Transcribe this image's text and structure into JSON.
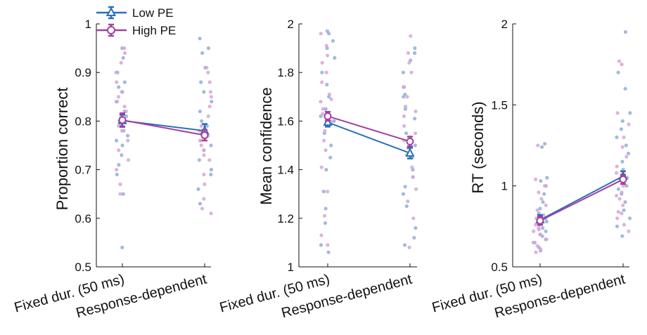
{
  "colors": {
    "low_pe": "#2a6fbb",
    "high_pe": "#a33fa2",
    "low_pe_dots": "#8fafd8",
    "high_pe_dots": "#d7a6d8",
    "axis": "#111111"
  },
  "legend": {
    "placement": "top-left",
    "items": [
      {
        "label": "Low PE",
        "marker": "triangle",
        "color_key": "low_pe"
      },
      {
        "label": "High PE",
        "marker": "circle",
        "color_key": "high_pe"
      }
    ]
  },
  "chart_data": [
    {
      "type": "line",
      "xlabel": "",
      "ylabel": "Proportion correct",
      "categories": [
        "Fixed dur. (50 ms)",
        "Response-dependent"
      ],
      "ylim": [
        0.5,
        1
      ],
      "yticks": [
        0.5,
        0.6,
        0.7,
        0.8,
        0.9,
        1
      ],
      "ytick_labels": [
        "0.5",
        "0.6",
        "0.7",
        "0.8",
        "0.9",
        "1"
      ],
      "grid": false,
      "series": [
        {
          "name": "Low PE",
          "values": [
            0.801,
            0.78
          ],
          "errors": [
            0.012,
            0.014
          ]
        },
        {
          "name": "High PE",
          "values": [
            0.802,
            0.771
          ],
          "errors": [
            0.014,
            0.011
          ]
        }
      ],
      "individual_points": {
        "Low PE": [
          [
            0.54,
            0.65,
            0.69,
            0.71,
            0.73,
            0.75,
            0.76,
            0.77,
            0.78,
            0.79,
            0.8,
            0.81,
            0.82,
            0.84,
            0.86,
            0.87,
            0.88,
            0.9,
            0.93,
            0.95
          ],
          [
            0.63,
            0.66,
            0.69,
            0.7,
            0.72,
            0.74,
            0.75,
            0.76,
            0.77,
            0.78,
            0.79,
            0.8,
            0.82,
            0.84,
            0.86,
            0.88,
            0.91,
            0.94,
            0.97,
            0.95
          ]
        ],
        "High PE": [
          [
            0.65,
            0.67,
            0.7,
            0.72,
            0.74,
            0.76,
            0.78,
            0.79,
            0.8,
            0.81,
            0.82,
            0.83,
            0.84,
            0.85,
            0.86,
            0.88,
            0.9,
            0.92,
            0.94,
            0.95
          ],
          [
            0.61,
            0.62,
            0.64,
            0.67,
            0.69,
            0.72,
            0.73,
            0.74,
            0.75,
            0.76,
            0.77,
            0.78,
            0.79,
            0.81,
            0.83,
            0.85,
            0.86,
            0.88,
            0.9,
            0.91
          ]
        ]
      }
    },
    {
      "type": "line",
      "xlabel": "",
      "ylabel": "Mean confidence",
      "categories": [
        "Fixed dur. (50 ms)",
        "Response-dependent"
      ],
      "ylim": [
        1,
        2
      ],
      "yticks": [
        1,
        1.2,
        1.4,
        1.6,
        1.8,
        2
      ],
      "ytick_labels": [
        "1",
        "1.2",
        "1.4",
        "1.6",
        "1.8",
        "2"
      ],
      "grid": false,
      "series": [
        {
          "name": "Low PE",
          "values": [
            1.595,
            1.468
          ],
          "errors": [
            0.018,
            0.022
          ]
        },
        {
          "name": "High PE",
          "values": [
            1.62,
            1.516
          ],
          "errors": [
            0.018,
            0.02
          ]
        }
      ],
      "individual_points": {
        "Low PE": [
          [
            1.06,
            1.09,
            1.18,
            1.24,
            1.31,
            1.4,
            1.45,
            1.5,
            1.55,
            1.6,
            1.62,
            1.65,
            1.7,
            1.75,
            1.8,
            1.86,
            1.9,
            1.93,
            1.96,
            1.97
          ],
          [
            1.09,
            1.12,
            1.16,
            1.25,
            1.3,
            1.33,
            1.37,
            1.4,
            1.45,
            1.5,
            1.55,
            1.61,
            1.65,
            1.7,
            1.74,
            1.8,
            1.85,
            1.88,
            1.9,
            1.71
          ]
        ],
        "High PE": [
          [
            1.09,
            1.13,
            1.21,
            1.31,
            1.41,
            1.48,
            1.52,
            1.56,
            1.6,
            1.63,
            1.65,
            1.68,
            1.71,
            1.76,
            1.8,
            1.84,
            1.87,
            1.91,
            1.96,
            1.69
          ],
          [
            1.08,
            1.2,
            1.27,
            1.32,
            1.37,
            1.41,
            1.46,
            1.49,
            1.52,
            1.55,
            1.58,
            1.62,
            1.66,
            1.7,
            1.74,
            1.8,
            1.84,
            1.88,
            1.95,
            1.64
          ]
        ]
      }
    },
    {
      "type": "line",
      "xlabel": "",
      "ylabel": "RT (seconds)",
      "categories": [
        "Fixed dur. (50 ms)",
        "Response-dependent"
      ],
      "ylim": [
        0.5,
        2
      ],
      "yticks": [
        0.5,
        1,
        1.5,
        2
      ],
      "ytick_labels": [
        "0.5",
        "1",
        "1.5",
        "2"
      ],
      "grid": false,
      "series": [
        {
          "name": "Low PE",
          "values": [
            0.79,
            1.06
          ],
          "errors": [
            0.03,
            0.03
          ]
        },
        {
          "name": "High PE",
          "values": [
            0.785,
            1.04
          ],
          "errors": [
            0.025,
            0.028
          ]
        }
      ],
      "individual_points": {
        "Low PE": [
          [
            0.6,
            0.62,
            0.65,
            0.67,
            0.69,
            0.7,
            0.72,
            0.74,
            0.76,
            0.78,
            0.8,
            0.83,
            0.86,
            0.9,
            0.95,
            1.0,
            1.03,
            1.05,
            1.24,
            1.26
          ],
          [
            0.69,
            0.75,
            0.8,
            0.85,
            0.9,
            0.95,
            1.0,
            1.05,
            1.1,
            1.15,
            1.2,
            1.25,
            1.3,
            1.35,
            1.4,
            1.45,
            1.6,
            1.7,
            1.95,
            0.98
          ]
        ],
        "High PE": [
          [
            0.59,
            0.61,
            0.63,
            0.65,
            0.67,
            0.7,
            0.72,
            0.74,
            0.76,
            0.78,
            0.8,
            0.82,
            0.85,
            0.88,
            0.92,
            0.96,
            1.0,
            1.04,
            1.25,
            0.73
          ],
          [
            0.72,
            0.76,
            0.8,
            0.84,
            0.88,
            0.92,
            0.96,
            1.0,
            1.04,
            1.08,
            1.12,
            1.18,
            1.24,
            1.3,
            1.38,
            1.45,
            1.75,
            1.77,
            0.83,
            0.94
          ]
        ]
      }
    }
  ]
}
